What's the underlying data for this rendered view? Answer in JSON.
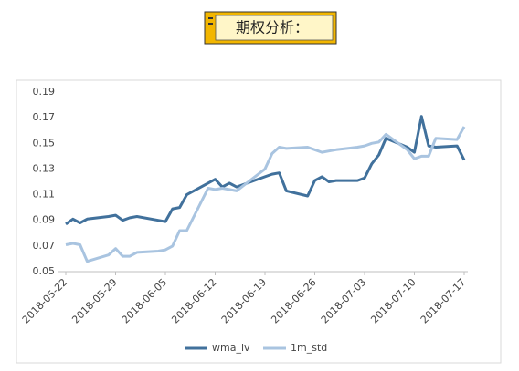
{
  "header": {
    "title": "期权分析："
  },
  "chart_data": {
    "type": "line",
    "x": [
      "2018-05-22",
      "2018-05-23",
      "2018-05-24",
      "2018-05-25",
      "2018-05-28",
      "2018-05-29",
      "2018-05-30",
      "2018-05-31",
      "2018-06-01",
      "2018-06-04",
      "2018-06-05",
      "2018-06-06",
      "2018-06-07",
      "2018-06-08",
      "2018-06-11",
      "2018-06-12",
      "2018-06-13",
      "2018-06-14",
      "2018-06-15",
      "2018-06-19",
      "2018-06-20",
      "2018-06-21",
      "2018-06-22",
      "2018-06-25",
      "2018-06-26",
      "2018-06-27",
      "2018-06-28",
      "2018-06-29",
      "2018-07-02",
      "2018-07-03",
      "2018-07-04",
      "2018-07-05",
      "2018-07-06",
      "2018-07-09",
      "2018-07-10",
      "2018-07-11",
      "2018-07-12",
      "2018-07-13",
      "2018-07-16",
      "2018-07-17"
    ],
    "series": [
      {
        "name": "wma_iv",
        "color": "#41719c",
        "values": [
          0.087,
          0.091,
          0.088,
          0.091,
          0.093,
          0.094,
          0.09,
          0.092,
          0.093,
          0.09,
          0.089,
          0.099,
          0.1,
          0.11,
          0.119,
          0.122,
          0.116,
          0.119,
          0.116,
          0.124,
          0.126,
          0.127,
          0.113,
          0.109,
          0.121,
          0.124,
          0.12,
          0.121,
          0.121,
          0.123,
          0.134,
          0.141,
          0.154,
          0.147,
          0.143,
          0.171,
          0.148,
          0.147,
          0.148,
          0.137
        ]
      },
      {
        "name": "1m_std",
        "color": "#a9c4e0",
        "values": [
          0.071,
          0.072,
          0.071,
          0.058,
          0.063,
          0.068,
          0.062,
          0.062,
          0.065,
          0.066,
          0.067,
          0.07,
          0.082,
          0.082,
          0.115,
          0.114,
          0.115,
          0.114,
          0.113,
          0.13,
          0.142,
          0.147,
          0.146,
          0.147,
          0.145,
          0.143,
          0.144,
          0.145,
          0.147,
          0.148,
          0.15,
          0.151,
          0.157,
          0.145,
          0.138,
          0.14,
          0.14,
          0.154,
          0.153,
          0.163
        ]
      }
    ],
    "xlim": [
      "2018-05-22",
      "2018-07-17"
    ],
    "xticks": [
      "2018-05-22",
      "2018-05-29",
      "2018-06-05",
      "2018-06-12",
      "2018-06-19",
      "2018-06-26",
      "2018-07-03",
      "2018-07-10",
      "2018-07-17"
    ],
    "ylim": [
      0.05,
      0.19
    ],
    "yticks": [
      0.05,
      0.07,
      0.09,
      0.11,
      0.13,
      0.15,
      0.17,
      0.19
    ],
    "legend": "bottom"
  }
}
